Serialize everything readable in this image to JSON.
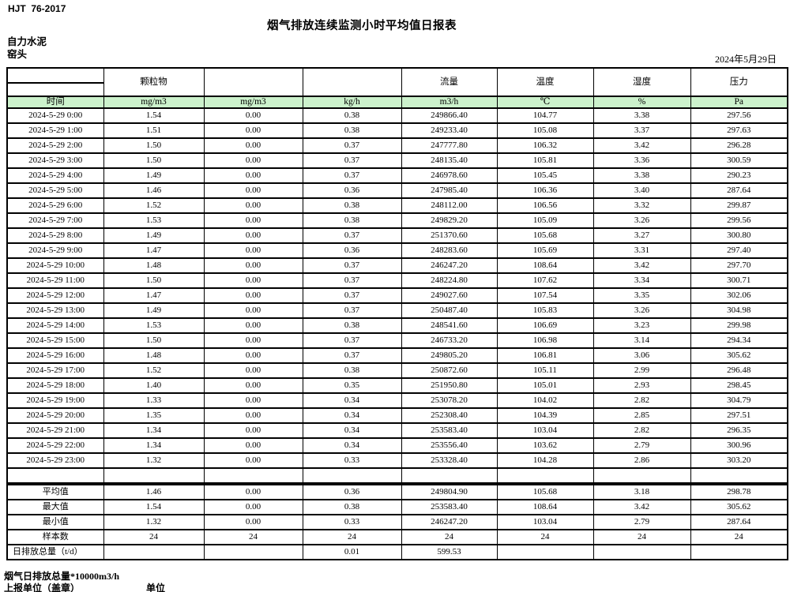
{
  "page": {
    "doc_code": "HJT  76-2017",
    "title": "烟气排放连续监测小时平均值日报表",
    "company": "自力水泥",
    "station": "窑头",
    "date": "2024年5月29日"
  },
  "table": {
    "time_header": "时间",
    "group_headers": {
      "particulate": "颗粒物",
      "flow": "流量",
      "temperature": "温度",
      "humidity": "湿度",
      "pressure": "压力"
    },
    "units": [
      "mg/m3",
      "mg/m3",
      "kg/h",
      "m3/h",
      "℃",
      "%",
      "Pa"
    ],
    "rows": [
      [
        "2024-5-29 0:00",
        "1.54",
        "0.00",
        "0.38",
        "249866.40",
        "104.77",
        "3.38",
        "297.56"
      ],
      [
        "2024-5-29 1:00",
        "1.51",
        "0.00",
        "0.38",
        "249233.40",
        "105.08",
        "3.37",
        "297.63"
      ],
      [
        "2024-5-29 2:00",
        "1.50",
        "0.00",
        "0.37",
        "247777.80",
        "106.32",
        "3.42",
        "296.28"
      ],
      [
        "2024-5-29 3:00",
        "1.50",
        "0.00",
        "0.37",
        "248135.40",
        "105.81",
        "3.36",
        "300.59"
      ],
      [
        "2024-5-29 4:00",
        "1.49",
        "0.00",
        "0.37",
        "246978.60",
        "105.45",
        "3.38",
        "290.23"
      ],
      [
        "2024-5-29 5:00",
        "1.46",
        "0.00",
        "0.36",
        "247985.40",
        "106.36",
        "3.40",
        "287.64"
      ],
      [
        "2024-5-29 6:00",
        "1.52",
        "0.00",
        "0.38",
        "248112.00",
        "106.56",
        "3.32",
        "299.87"
      ],
      [
        "2024-5-29 7:00",
        "1.53",
        "0.00",
        "0.38",
        "249829.20",
        "105.09",
        "3.26",
        "299.56"
      ],
      [
        "2024-5-29 8:00",
        "1.49",
        "0.00",
        "0.37",
        "251370.60",
        "105.68",
        "3.27",
        "300.80"
      ],
      [
        "2024-5-29 9:00",
        "1.47",
        "0.00",
        "0.36",
        "248283.60",
        "105.69",
        "3.31",
        "297.40"
      ],
      [
        "2024-5-29 10:00",
        "1.48",
        "0.00",
        "0.37",
        "246247.20",
        "108.64",
        "3.42",
        "297.70"
      ],
      [
        "2024-5-29 11:00",
        "1.50",
        "0.00",
        "0.37",
        "248224.80",
        "107.62",
        "3.34",
        "300.71"
      ],
      [
        "2024-5-29 12:00",
        "1.47",
        "0.00",
        "0.37",
        "249027.60",
        "107.54",
        "3.35",
        "302.06"
      ],
      [
        "2024-5-29 13:00",
        "1.49",
        "0.00",
        "0.37",
        "250487.40",
        "105.83",
        "3.26",
        "304.98"
      ],
      [
        "2024-5-29 14:00",
        "1.53",
        "0.00",
        "0.38",
        "248541.60",
        "106.69",
        "3.23",
        "299.98"
      ],
      [
        "2024-5-29 15:00",
        "1.50",
        "0.00",
        "0.37",
        "246733.20",
        "106.98",
        "3.14",
        "294.34"
      ],
      [
        "2024-5-29 16:00",
        "1.48",
        "0.00",
        "0.37",
        "249805.20",
        "106.81",
        "3.06",
        "305.62"
      ],
      [
        "2024-5-29 17:00",
        "1.52",
        "0.00",
        "0.38",
        "250872.60",
        "105.11",
        "2.99",
        "296.48"
      ],
      [
        "2024-5-29 18:00",
        "1.40",
        "0.00",
        "0.35",
        "251950.80",
        "105.01",
        "2.93",
        "298.45"
      ],
      [
        "2024-5-29 19:00",
        "1.33",
        "0.00",
        "0.34",
        "253078.20",
        "104.02",
        "2.82",
        "304.79"
      ],
      [
        "2024-5-29 20:00",
        "1.35",
        "0.00",
        "0.34",
        "252308.40",
        "104.39",
        "2.85",
        "297.51"
      ],
      [
        "2024-5-29 21:00",
        "1.34",
        "0.00",
        "0.34",
        "253583.40",
        "103.04",
        "2.82",
        "296.35"
      ],
      [
        "2024-5-29 22:00",
        "1.34",
        "0.00",
        "0.34",
        "253556.40",
        "103.62",
        "2.79",
        "300.96"
      ],
      [
        "2024-5-29 23:00",
        "1.32",
        "0.00",
        "0.33",
        "253328.40",
        "104.28",
        "2.86",
        "303.20"
      ],
      [
        "",
        "",
        "",
        "",
        "",
        "",
        "",
        ""
      ]
    ],
    "summary": [
      {
        "label": "平均值",
        "values": [
          "1.46",
          "0.00",
          "0.36",
          "249804.90",
          "105.68",
          "3.18",
          "298.78"
        ]
      },
      {
        "label": "最大值",
        "values": [
          "1.54",
          "0.00",
          "0.38",
          "253583.40",
          "108.64",
          "3.42",
          "305.62"
        ]
      },
      {
        "label": "最小值",
        "values": [
          "1.32",
          "0.00",
          "0.33",
          "246247.20",
          "103.04",
          "2.79",
          "287.64"
        ]
      },
      {
        "label": "样本数",
        "values": [
          "24",
          "24",
          "24",
          "24",
          "24",
          "24",
          "24"
        ]
      },
      {
        "label": "日排放总量（t/d）",
        "label_align": "left",
        "values": [
          "",
          "",
          "0.01",
          "599.53",
          "",
          "",
          ""
        ]
      }
    ]
  },
  "footer": {
    "footnote": "烟气日排放总量*10000m3/h",
    "report_unit_label": "上报单位（盖章）",
    "unit_label": "单位"
  },
  "colors": {
    "header_green": "#ccf2cc",
    "border": "#000000",
    "background": "#ffffff"
  }
}
